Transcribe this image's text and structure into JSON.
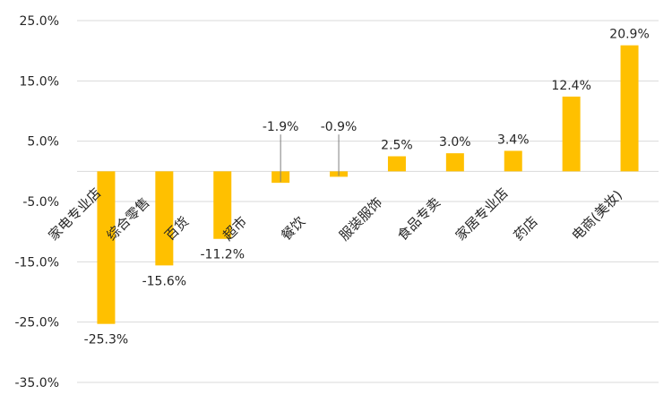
{
  "chart_data": {
    "type": "bar",
    "title": "",
    "xlabel": "",
    "ylabel": "",
    "ylim": [
      -35,
      25
    ],
    "y_ticks": [
      "25.0%",
      "15.0%",
      "5.0%",
      "-5.0%",
      "-15.0%",
      "-25.0%",
      "-35.0%"
    ],
    "y_tick_values": [
      25,
      15,
      5,
      -5,
      -15,
      -25,
      -35
    ],
    "categories": [
      "家电专业店",
      "综合零售",
      "百货",
      "超市",
      "餐饮",
      "服装服饰",
      "食品专卖",
      "家居专业店",
      "药店",
      "电商(美妆)"
    ],
    "values": [
      -25.3,
      -15.6,
      -11.2,
      -1.9,
      -0.9,
      2.5,
      3.0,
      3.4,
      12.4,
      20.9
    ],
    "value_labels": [
      "-25.3%",
      "-15.6%",
      "-11.2%",
      "-1.9%",
      "-0.9%",
      "2.5%",
      "3.0%",
      "3.4%",
      "12.4%",
      "20.9%"
    ],
    "gridlines": true,
    "legend": "none",
    "bar_color": "#FFC000",
    "gridline_color": "#D9D9D9"
  }
}
